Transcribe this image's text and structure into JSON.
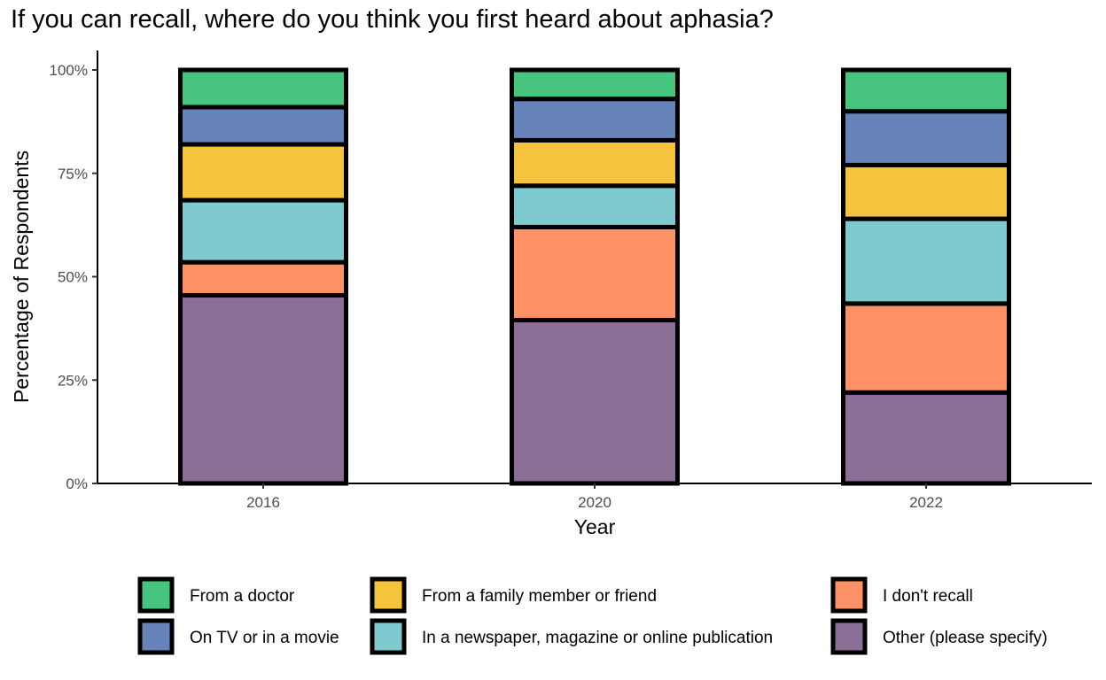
{
  "chart_data": {
    "type": "bar",
    "stacked": true,
    "title": "If you can recall, where do you think you first heard about aphasia?",
    "xlabel": "Year",
    "ylabel": "Percentage of Respondents",
    "categories": [
      "2016",
      "2020",
      "2022"
    ],
    "ylim": [
      0,
      100
    ],
    "yticks": [
      0,
      25,
      50,
      75,
      100
    ],
    "ytick_labels": [
      "0%",
      "25%",
      "50%",
      "75%",
      "100%"
    ],
    "grid": false,
    "legend_position": "bottom",
    "series": [
      {
        "name": "Other (please specify)",
        "color": "#8A6E96",
        "values": [
          45.5,
          39.5,
          22
        ]
      },
      {
        "name": "I don't recall",
        "color": "#FF9166",
        "values": [
          8,
          22.5,
          21.5
        ]
      },
      {
        "name": "In a newspaper, magazine or online publication",
        "color": "#7FCACE",
        "values": [
          15,
          10,
          20.5
        ]
      },
      {
        "name": "From a family member or friend",
        "color": "#F6C33D",
        "values": [
          13.5,
          11,
          13
        ]
      },
      {
        "name": "On TV or in a movie",
        "color": "#6784BA",
        "values": [
          9,
          10,
          13
        ]
      },
      {
        "name": "From a doctor",
        "color": "#47C57F",
        "values": [
          9,
          7,
          10
        ]
      }
    ],
    "legend_order": [
      "From a doctor",
      "On TV or in a movie",
      "From a family member or friend",
      "In a newspaper, magazine or online publication",
      "I don't recall",
      "Other (please specify)"
    ]
  }
}
